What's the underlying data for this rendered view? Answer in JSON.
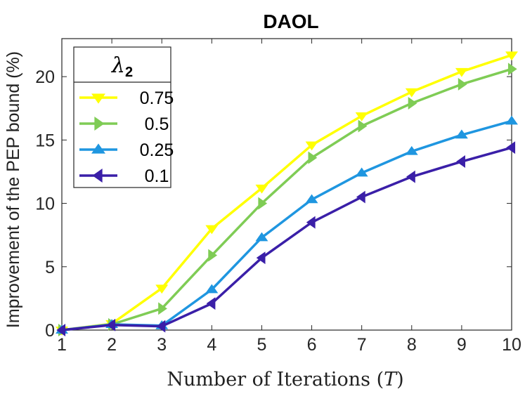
{
  "chart_data": {
    "type": "line",
    "title": "DAOL",
    "xlabel": "Number of Iterations (",
    "xlabel_var": "T",
    "xlabel_close": ")",
    "ylabel": "Improvement of the PEP bound (%)",
    "x": [
      1,
      2,
      3,
      4,
      5,
      6,
      7,
      8,
      9,
      10
    ],
    "xlim": [
      1,
      10
    ],
    "ylim": [
      0,
      23
    ],
    "xticks": [
      1,
      2,
      3,
      4,
      5,
      6,
      7,
      8,
      9,
      10
    ],
    "yticks": [
      0,
      5,
      10,
      15,
      20
    ],
    "grid": false,
    "legend": {
      "title_symbol": "λ",
      "title_subscript": "2",
      "placement": "top-left"
    },
    "series": [
      {
        "name": "0.75",
        "color": "#FFFF00",
        "marker": "triangle-down",
        "values": [
          0,
          0.5,
          3.3,
          8.0,
          11.2,
          14.6,
          16.9,
          18.8,
          20.4,
          21.7
        ]
      },
      {
        "name": "0.5",
        "color": "#7FCC55",
        "marker": "triangle-right",
        "values": [
          0,
          0.45,
          1.7,
          5.9,
          10.0,
          13.6,
          16.1,
          17.9,
          19.4,
          20.6
        ]
      },
      {
        "name": "0.25",
        "color": "#1F96E0",
        "marker": "triangle-up",
        "values": [
          0,
          0.45,
          0.35,
          3.2,
          7.3,
          10.3,
          12.4,
          14.1,
          15.4,
          16.5
        ]
      },
      {
        "name": "0.1",
        "color": "#3A1FA8",
        "marker": "triangle-left",
        "values": [
          0,
          0.4,
          0.3,
          2.1,
          5.7,
          8.5,
          10.5,
          12.1,
          13.3,
          14.4
        ]
      }
    ]
  }
}
